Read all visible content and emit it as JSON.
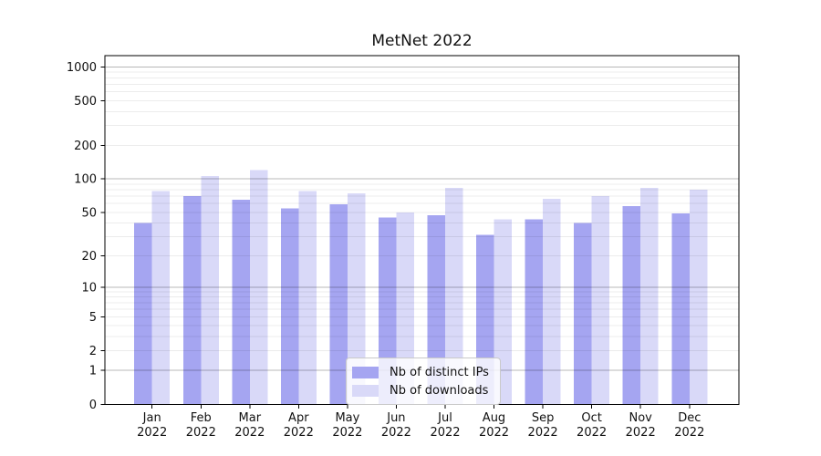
{
  "chart_data": {
    "type": "bar",
    "title": "MetNet 2022",
    "x_categories": [
      "Jan",
      "Feb",
      "Mar",
      "Apr",
      "May",
      "Jun",
      "Jul",
      "Aug",
      "Sep",
      "Oct",
      "Nov",
      "Dec"
    ],
    "x_year_line": "2022",
    "series": [
      {
        "name": "Nb of distinct IPs",
        "color": "#a5a5f1",
        "values": [
          40,
          70,
          65,
          54,
          59,
          45,
          47,
          31,
          43,
          40,
          57,
          49
        ]
      },
      {
        "name": "Nb of downloads",
        "color": "#d9d9f8",
        "values": [
          78,
          106,
          120,
          78,
          74,
          50,
          83,
          43,
          66,
          70,
          83,
          80
        ]
      }
    ],
    "y_scale": "log10(1+v)",
    "y_ticks": [
      0,
      1,
      2,
      5,
      10,
      20,
      50,
      100,
      200,
      500,
      1000
    ],
    "y_major_gridlines": [
      1,
      10,
      100,
      1000
    ],
    "y_minor_gridlines": [
      2,
      3,
      4,
      5,
      6,
      7,
      8,
      9,
      20,
      30,
      40,
      50,
      60,
      70,
      80,
      90,
      200,
      300,
      400,
      500,
      600,
      700,
      800,
      900
    ],
    "ylim": [
      0,
      1259
    ],
    "grid": true,
    "legend_position": "lower center",
    "colors": {
      "major_grid": "rgba(0,0,0,0.28)",
      "minor_grid": "rgba(0,0,0,0.075)",
      "spine": "#000000",
      "text": "#111111",
      "background": "#ffffff"
    }
  }
}
